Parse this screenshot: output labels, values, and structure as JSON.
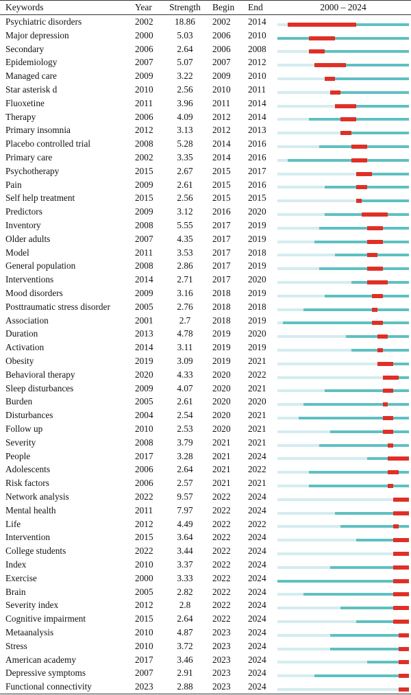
{
  "header": {
    "keywords": "Keywords",
    "year": "Year",
    "strength": "Strength",
    "begin": "Begin",
    "end": "End",
    "timeline": "2000 – 2024"
  },
  "colors": {
    "faint": "#d4ecef",
    "teal": "#5ec0c2",
    "red": "#e02f26"
  },
  "chart_data": {
    "type": "table",
    "timeline_range": [
      2000,
      2024
    ],
    "columns": [
      "Keywords",
      "Year",
      "Strength",
      "Begin",
      "End"
    ],
    "rows": [
      {
        "keyword": "Psychiatric disorders",
        "year": "2002",
        "strength": "18.86",
        "begin": "2002",
        "end": "2014"
      },
      {
        "keyword": "Major depression",
        "year": "2000",
        "strength": "5.03",
        "begin": "2006",
        "end": "2010"
      },
      {
        "keyword": "Secondary",
        "year": "2006",
        "strength": "2.64",
        "begin": "2006",
        "end": "2008"
      },
      {
        "keyword": "Epidemiology",
        "year": "2007",
        "strength": "5.07",
        "begin": "2007",
        "end": "2012"
      },
      {
        "keyword": "Managed care",
        "year": "2009",
        "strength": "3.22",
        "begin": "2009",
        "end": "2010"
      },
      {
        "keyword": "Star asterisk d",
        "year": "2010",
        "strength": "2.56",
        "begin": "2010",
        "end": "2011"
      },
      {
        "keyword": "Fluoxetine",
        "year": "2011",
        "strength": "3.96",
        "begin": "2011",
        "end": "2014"
      },
      {
        "keyword": "Therapy",
        "year": "2006",
        "strength": "4.09",
        "begin": "2012",
        "end": "2014"
      },
      {
        "keyword": "Primary insomnia",
        "year": "2012",
        "strength": "3.13",
        "begin": "2012",
        "end": "2013"
      },
      {
        "keyword": "Placebo controlled trial",
        "year": "2008",
        "strength": "5.28",
        "begin": "2014",
        "end": "2016"
      },
      {
        "keyword": "Primary care",
        "year": "2002",
        "strength": "3.35",
        "begin": "2014",
        "end": "2016"
      },
      {
        "keyword": "Psychotherapy",
        "year": "2015",
        "strength": "2.67",
        "begin": "2015",
        "end": "2017"
      },
      {
        "keyword": "Pain",
        "year": "2009",
        "strength": "2.61",
        "begin": "2015",
        "end": "2016"
      },
      {
        "keyword": "Self help treatment",
        "year": "2015",
        "strength": "2.56",
        "begin": "2015",
        "end": "2015"
      },
      {
        "keyword": "Predictors",
        "year": "2009",
        "strength": "3.12",
        "begin": "2016",
        "end": "2020"
      },
      {
        "keyword": "Inventory",
        "year": "2008",
        "strength": "5.55",
        "begin": "2017",
        "end": "2019"
      },
      {
        "keyword": "Older adults",
        "year": "2007",
        "strength": "4.35",
        "begin": "2017",
        "end": "2019"
      },
      {
        "keyword": "Model",
        "year": "2011",
        "strength": "3.53",
        "begin": "2017",
        "end": "2018"
      },
      {
        "keyword": "General population",
        "year": "2008",
        "strength": "2.86",
        "begin": "2017",
        "end": "2019"
      },
      {
        "keyword": "Interventions",
        "year": "2014",
        "strength": "2.71",
        "begin": "2017",
        "end": "2020"
      },
      {
        "keyword": "Mood disorders",
        "year": "2009",
        "strength": "3.16",
        "begin": "2018",
        "end": "2019"
      },
      {
        "keyword": "Posttraumatic stress disorder",
        "year": "2005",
        "strength": "2.76",
        "begin": "2018",
        "end": "2018"
      },
      {
        "keyword": "Association",
        "year": "2001",
        "strength": "2.7",
        "begin": "2018",
        "end": "2019"
      },
      {
        "keyword": "Duration",
        "year": "2013",
        "strength": "4.78",
        "begin": "2019",
        "end": "2020"
      },
      {
        "keyword": "Activation",
        "year": "2014",
        "strength": "3.11",
        "begin": "2019",
        "end": "2019"
      },
      {
        "keyword": "Obesity",
        "year": "2019",
        "strength": "3.09",
        "begin": "2019",
        "end": "2021"
      },
      {
        "keyword": "Behavioral therapy",
        "year": "2020",
        "strength": "4.33",
        "begin": "2020",
        "end": "2022"
      },
      {
        "keyword": "Sleep disturbances",
        "year": "2009",
        "strength": "4.07",
        "begin": "2020",
        "end": "2021"
      },
      {
        "keyword": "Burden",
        "year": "2005",
        "strength": "2.61",
        "begin": "2020",
        "end": "2020"
      },
      {
        "keyword": "Disturbances",
        "year": "2004",
        "strength": "2.54",
        "begin": "2020",
        "end": "2021"
      },
      {
        "keyword": "Follow up",
        "year": "2010",
        "strength": "2.53",
        "begin": "2020",
        "end": "2021"
      },
      {
        "keyword": "Severity",
        "year": "2008",
        "strength": "3.79",
        "begin": "2021",
        "end": "2021"
      },
      {
        "keyword": "People",
        "year": "2017",
        "strength": "3.28",
        "begin": "2021",
        "end": "2024"
      },
      {
        "keyword": "Adolescents",
        "year": "2006",
        "strength": "2.64",
        "begin": "2021",
        "end": "2022"
      },
      {
        "keyword": "Risk factors",
        "year": "2006",
        "strength": "2.57",
        "begin": "2021",
        "end": "2021"
      },
      {
        "keyword": "Network analysis",
        "year": "2022",
        "strength": "9.57",
        "begin": "2022",
        "end": "2024"
      },
      {
        "keyword": "Mental health",
        "year": "2011",
        "strength": "7.97",
        "begin": "2022",
        "end": "2024"
      },
      {
        "keyword": "Life",
        "year": "2012",
        "strength": "4.49",
        "begin": "2022",
        "end": "2022"
      },
      {
        "keyword": "Intervention",
        "year": "2015",
        "strength": "3.64",
        "begin": "2022",
        "end": "2024"
      },
      {
        "keyword": "College students",
        "year": "2022",
        "strength": "3.44",
        "begin": "2022",
        "end": "2024"
      },
      {
        "keyword": "Index",
        "year": "2010",
        "strength": "3.37",
        "begin": "2022",
        "end": "2024"
      },
      {
        "keyword": "Exercise",
        "year": "2000",
        "strength": "3.33",
        "begin": "2022",
        "end": "2024"
      },
      {
        "keyword": "Brain",
        "year": "2005",
        "strength": "2.82",
        "begin": "2022",
        "end": "2024"
      },
      {
        "keyword": "Severity index",
        "year": "2012",
        "strength": "2.8",
        "begin": "2022",
        "end": "2024"
      },
      {
        "keyword": "Cognitive impairment",
        "year": "2015",
        "strength": "2.64",
        "begin": "2022",
        "end": "2024"
      },
      {
        "keyword": "Metaanalysis",
        "year": "2010",
        "strength": "4.87",
        "begin": "2023",
        "end": "2024"
      },
      {
        "keyword": "Stress",
        "year": "2010",
        "strength": "3.72",
        "begin": "2023",
        "end": "2024"
      },
      {
        "keyword": "American academy",
        "year": "2017",
        "strength": "3.46",
        "begin": "2023",
        "end": "2024"
      },
      {
        "keyword": "Depressive symptoms",
        "year": "2007",
        "strength": "2.91",
        "begin": "2023",
        "end": "2024"
      },
      {
        "keyword": "Functional connectivity",
        "year": "2023",
        "strength": "2.88",
        "begin": "2023",
        "end": "2024"
      }
    ]
  }
}
